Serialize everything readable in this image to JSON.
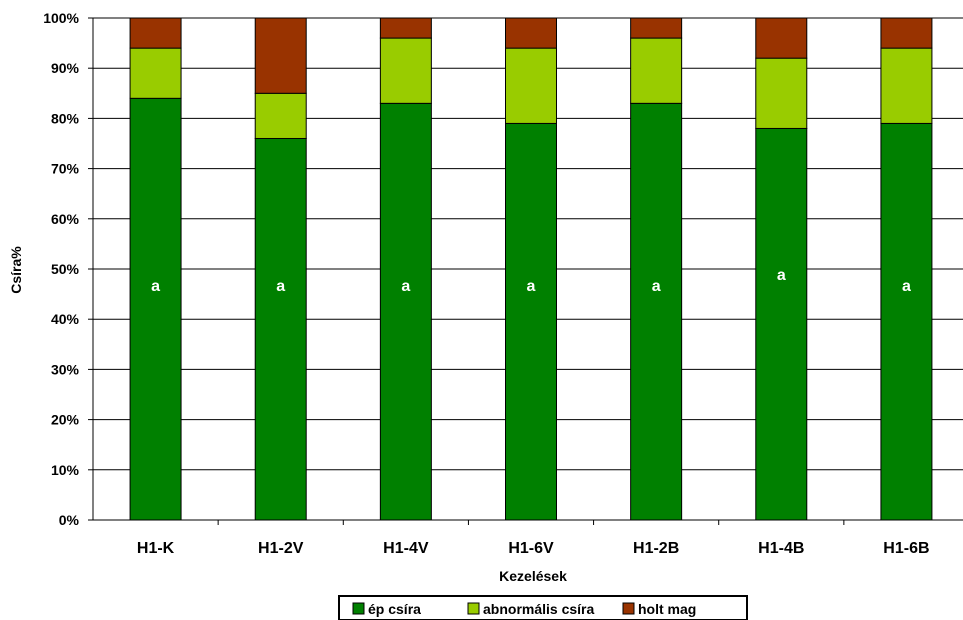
{
  "chart_data": {
    "type": "bar",
    "stacked": true,
    "percent": true,
    "categories": [
      "H1-K",
      "H1-2V",
      "H1-4V",
      "H1-6V",
      "H1-2B",
      "H1-4B",
      "H1-6B"
    ],
    "series": [
      {
        "name": "ép csíra",
        "color": "#008000",
        "values": [
          84,
          76,
          83,
          79,
          83,
          78,
          79
        ]
      },
      {
        "name": "abnormális csíra",
        "color": "#99cc00",
        "values": [
          10,
          9,
          13,
          15,
          13,
          14,
          15
        ]
      },
      {
        "name": "holt mag",
        "color": "#993300",
        "values": [
          6,
          15,
          4,
          6,
          4,
          8,
          6
        ]
      }
    ],
    "bar_annotations": [
      "a",
      "a",
      "a",
      "a",
      "a",
      "a",
      "a"
    ],
    "xlabel": "Kezelések",
    "ylabel": "Csíra%",
    "ylim": [
      0,
      100
    ],
    "yticks": [
      "0%",
      "10%",
      "20%",
      "30%",
      "40%",
      "50%",
      "60%",
      "70%",
      "80%",
      "90%",
      "100%"
    ],
    "grid": true,
    "legend_position": "bottom"
  }
}
